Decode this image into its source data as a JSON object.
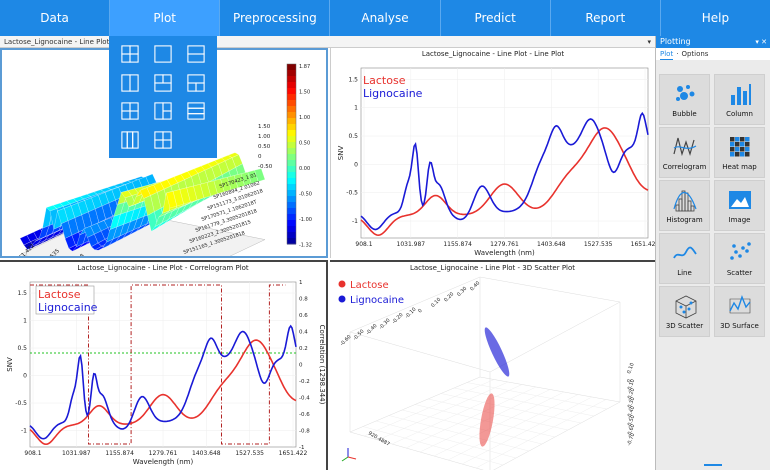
{
  "menu": [
    {
      "label": "Data"
    },
    {
      "label": "Plot"
    },
    {
      "label": "Preprocessing"
    },
    {
      "label": "Analyse"
    },
    {
      "label": "Predict"
    },
    {
      "label": "Report"
    },
    {
      "label": "Help"
    }
  ],
  "document": {
    "title": "Lactose_Lignocaine - Line Plot"
  },
  "panes": {
    "p1": {
      "title": "Lactose_Lignocaine - Line Plot",
      "colorbar_ticks": [
        "1.87",
        "1.50",
        "1.00",
        "0.50",
        "0.00",
        "-0.50",
        "-1.00",
        "-1.32"
      ],
      "z_ticks": [
        "1.50",
        "1.00",
        "0.50",
        "0",
        "-0.50"
      ],
      "x_ticks": [
        "1651.422",
        "1527.535",
        "1403.648",
        "1279.761",
        "1155.874",
        "1031.987",
        "908.1"
      ],
      "sample_labels": [
        "SP170423_1.01",
        "SP160894_2.01062",
        "SP151173_3.01062018",
        "SP170571_1.1062018T",
        "SP161779_3.3005201818",
        "SP160223_2.3005201815",
        "SP151165_1.3005201818"
      ]
    },
    "p2": {
      "title": "Lactose_Lignocaine - Line Plot - Line Plot",
      "xlabel": "Wavelength (nm)",
      "ylabel": "SNV",
      "legend": [
        "Lactose",
        "Lignocaine"
      ],
      "x_ticks": [
        "908.1",
        "1031.987",
        "1155.874",
        "1279.761",
        "1403.648",
        "1527.535",
        "1651.422"
      ],
      "y_ticks": [
        "1.5",
        "1",
        "0.5",
        "0",
        "-0.5",
        "-1"
      ]
    },
    "p3": {
      "title": "Lactose_Lignocaine - Line Plot - Correlogram Plot",
      "xlabel": "Wavelength (nm)",
      "ylabel": "SNV",
      "ylabel2": "Correlation (1298.344)",
      "legend": [
        "Lactose",
        "Lignocaine"
      ],
      "x_ticks": [
        "908.1",
        "1031.987",
        "1155.874",
        "1279.761",
        "1403.648",
        "1527.535",
        "1651.422"
      ],
      "y_ticks": [
        "1.5",
        "1",
        "0.5",
        "0",
        "-0.5",
        "-1"
      ],
      "y2_ticks": [
        "1",
        "0.8",
        "0.6",
        "0.4",
        "0.2",
        "0",
        "-0.2",
        "-0.4",
        "-0.6",
        "-0.8",
        "-1"
      ]
    },
    "p4": {
      "title": "Lactose_Lignocaine - Line Plot - 3D Scatter Plot",
      "legend": [
        "Lactose",
        "Lignocaine"
      ],
      "left_ticks": [
        "-0.60",
        "-0.50",
        "-0.40",
        "-0.30",
        "-0.20",
        "-0.10",
        "0",
        "0.10",
        "0.20",
        "0.30",
        "0.40"
      ],
      "right_ticks": [
        "0.10",
        "0",
        "-0.10",
        "-0.20",
        "-0.30",
        "-0.40",
        "-0.50",
        "-0.60",
        "-0.70"
      ],
      "bottom_label": "920.4887"
    }
  },
  "colors": {
    "lactose": "#e8322d",
    "lignocaine": "#1a1ad6",
    "accent": "#1e88e5",
    "correlation": "#b22222",
    "zero_line": "#22c322"
  },
  "plot_dropdown": {
    "layouts": [
      "grid-2x2",
      "single",
      "split-horizontal",
      "split-vertical",
      "grid-2x2-alt",
      "grid-3",
      "grid-3x2",
      "grid-cross",
      "grid-4-rows",
      "grid-3-cols",
      "grid-4"
    ]
  },
  "right_panel": {
    "title": "Plotting",
    "tabs": [
      "Plot",
      "Options"
    ],
    "tiles": [
      {
        "label": "Bubble",
        "icon": "bubble-icon"
      },
      {
        "label": "Column",
        "icon": "column-icon"
      },
      {
        "label": "Correlogram",
        "icon": "correlogram-icon"
      },
      {
        "label": "Heat map",
        "icon": "heatmap-icon"
      },
      {
        "label": "Histogram",
        "icon": "histogram-icon"
      },
      {
        "label": "Image",
        "icon": "image-icon"
      },
      {
        "label": "Line",
        "icon": "line-icon"
      },
      {
        "label": "Scatter",
        "icon": "scatter-icon"
      },
      {
        "label": "3D Scatter",
        "icon": "scatter3d-icon"
      },
      {
        "label": "3D Surface",
        "icon": "surface3d-icon"
      }
    ]
  }
}
